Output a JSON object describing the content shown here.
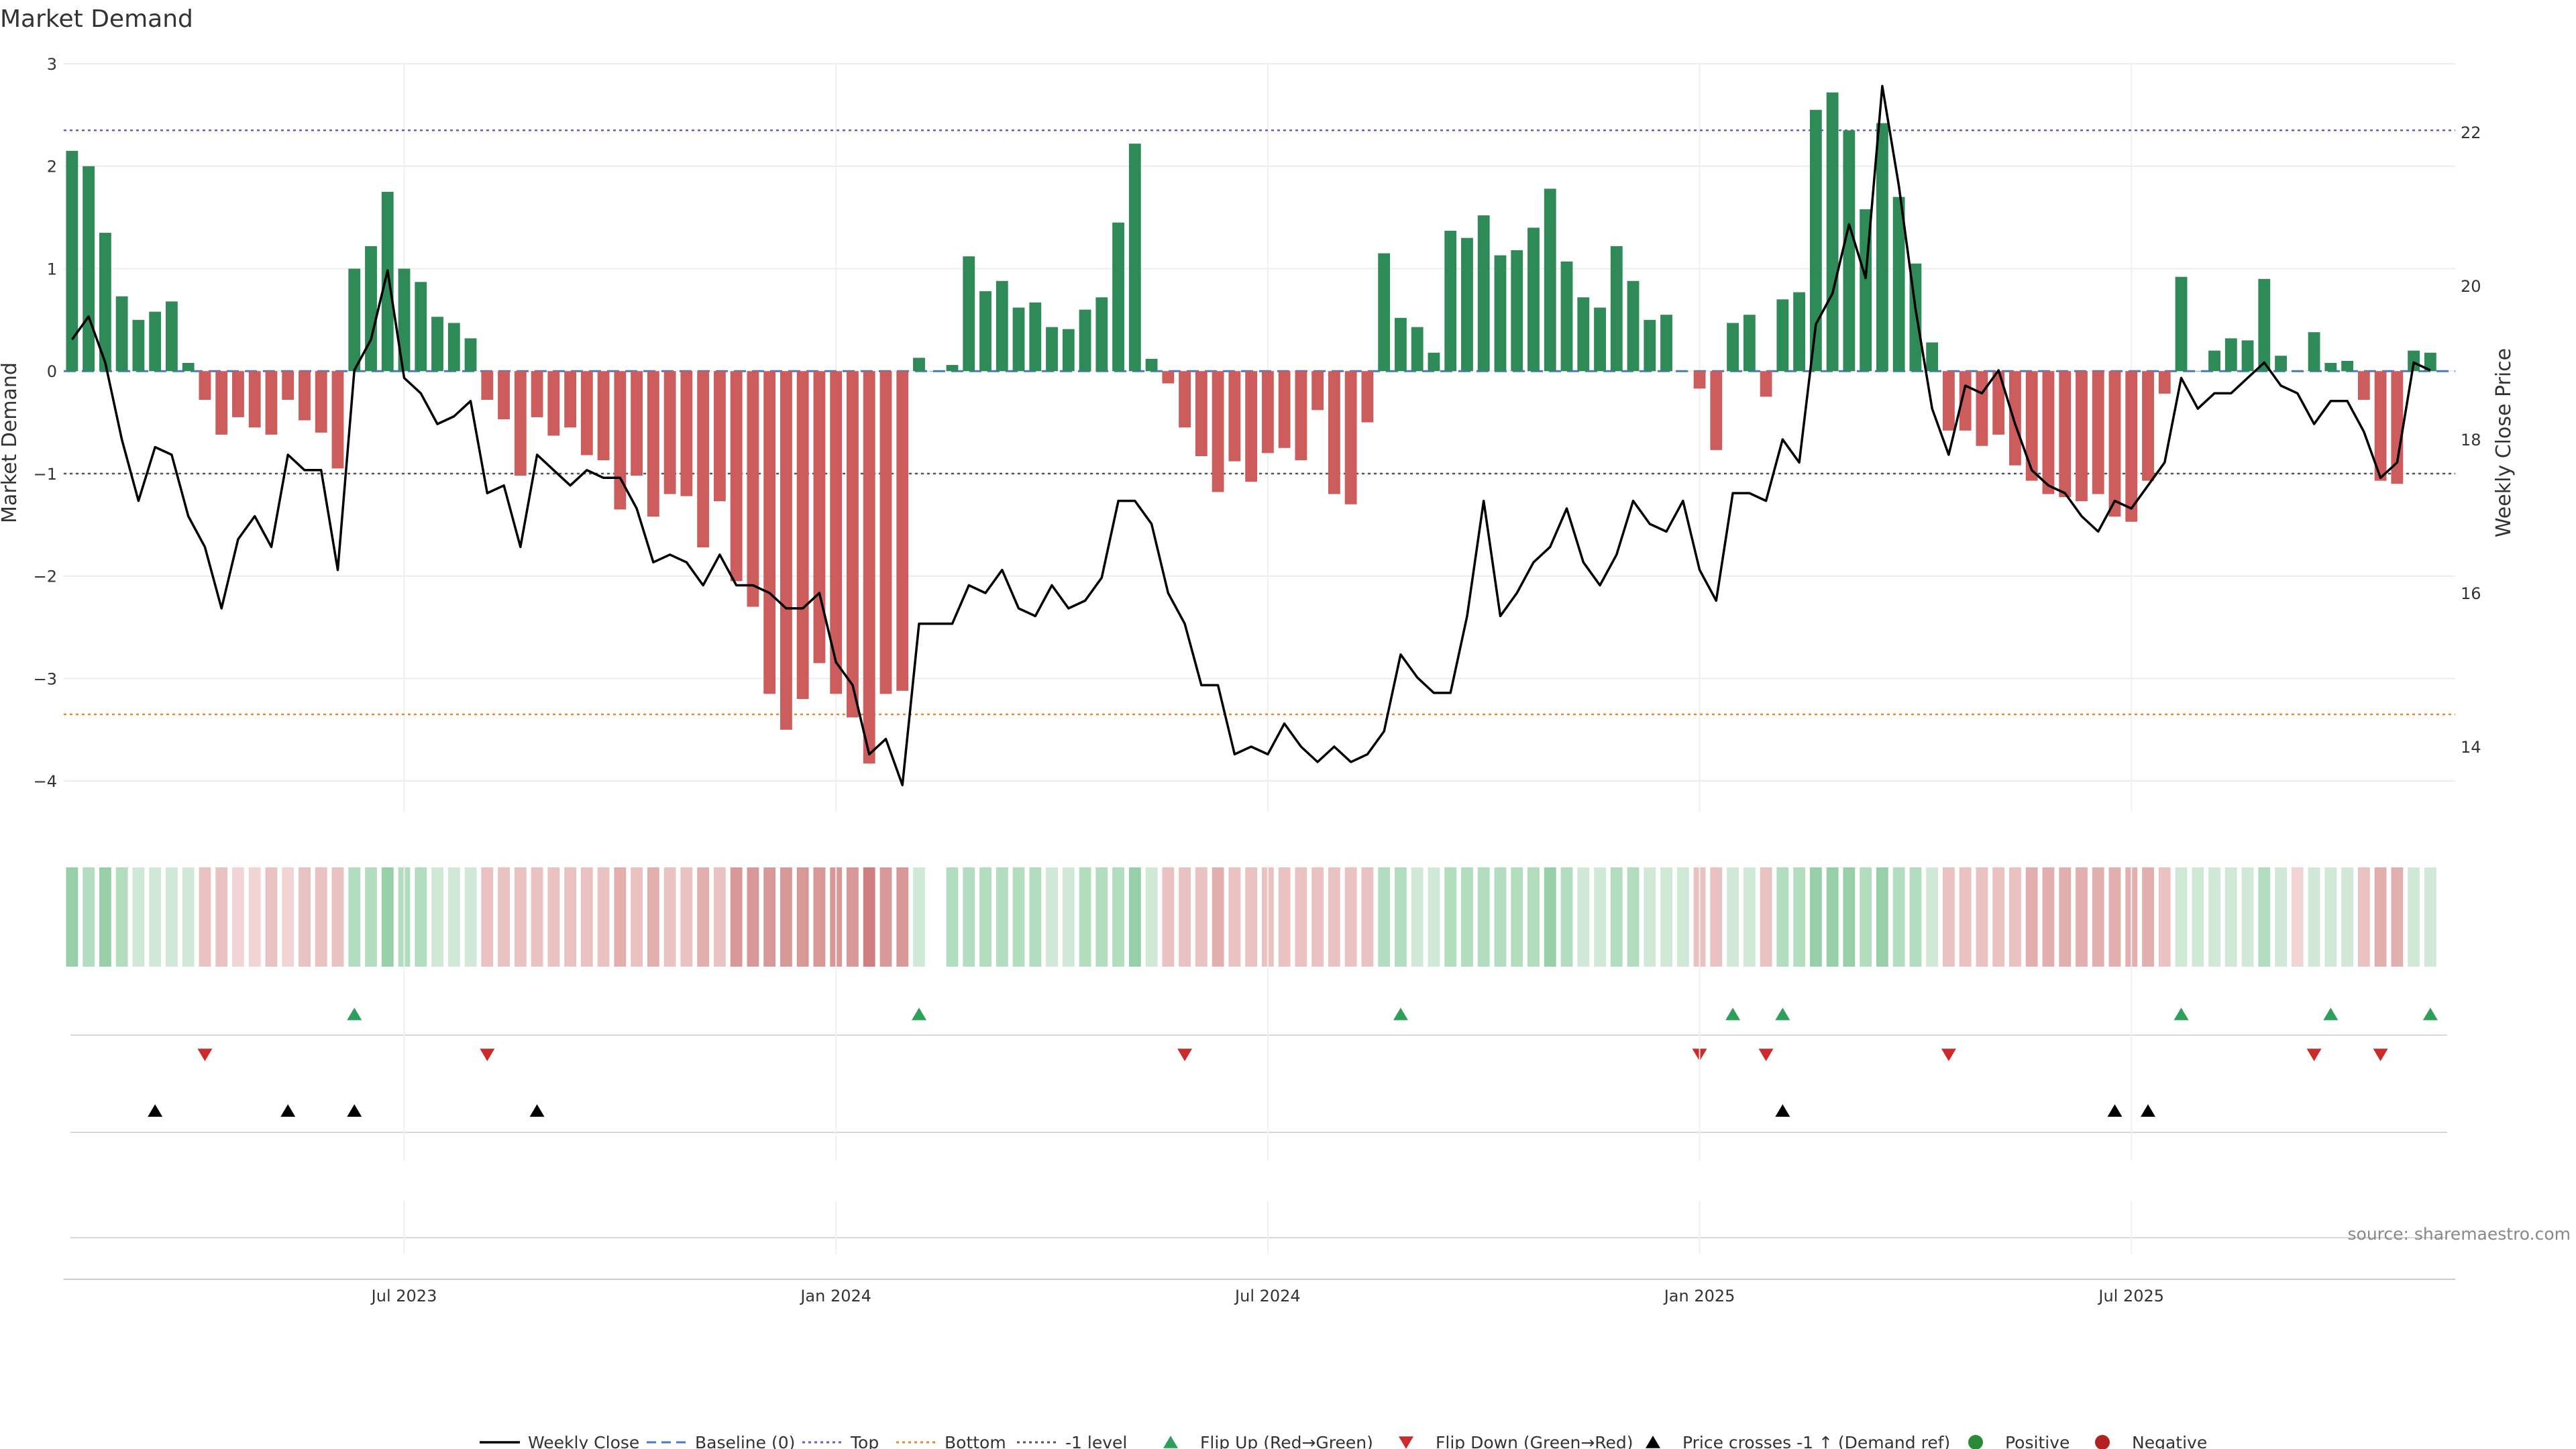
{
  "chart_data": {
    "type": "bar+line",
    "title": "Market Demand",
    "ylabel": "Market Demand",
    "y2label": "Weekly Close Price",
    "ylim": [
      -4.3,
      3.0
    ],
    "y2lim": [
      13.0,
      23.2
    ],
    "y_ticks": [
      3,
      2,
      1,
      0,
      -1,
      -2,
      -3,
      -4
    ],
    "y_tick_labels": [
      "3",
      "2",
      "1",
      "0",
      "−1",
      "−2",
      "−3",
      "−4"
    ],
    "y2_ticks": [
      22,
      20,
      18,
      16,
      14
    ],
    "y2_tick_labels": [
      "22",
      "20",
      "18",
      "16",
      "14"
    ],
    "x_ticks": [
      {
        "label": "Jul 2023",
        "week": 20
      },
      {
        "label": "Jan 2024",
        "week": 46
      },
      {
        "label": "Jul 2024",
        "week": 72
      },
      {
        "label": "Jan 2025",
        "week": 98
      },
      {
        "label": "Jul 2025",
        "week": 124
      }
    ],
    "week_count": 144,
    "reference_lines": [
      {
        "name": "Top",
        "value": 2.35,
        "color": "#6a5acd"
      },
      {
        "name": "Bottom",
        "value": -3.35,
        "color": "#e08a2e"
      },
      {
        "name": "-1 level",
        "value": -1.0,
        "color": "#555555"
      },
      {
        "name": "Baseline (0)",
        "value": 0,
        "color": "#4a78c2"
      }
    ],
    "demand": [
      2.15,
      2.0,
      1.35,
      0.73,
      0.5,
      0.58,
      0.68,
      0.08,
      -0.28,
      -0.62,
      -0.45,
      -0.55,
      -0.62,
      -0.28,
      -0.48,
      -0.6,
      -0.95,
      1.0,
      1.22,
      1.75,
      1.0,
      0.87,
      0.53,
      0.47,
      0.32,
      -0.28,
      -0.47,
      -1.02,
      -0.45,
      -0.63,
      -0.55,
      -0.82,
      -0.87,
      -1.35,
      -1.02,
      -1.42,
      -1.2,
      -1.22,
      -1.72,
      -1.27,
      -2.05,
      -2.3,
      -3.15,
      -3.5,
      -3.2,
      -2.85,
      -3.15,
      -3.38,
      -3.83,
      -3.15,
      -3.12,
      0.13,
      0.0,
      0.06,
      1.12,
      0.78,
      0.88,
      0.62,
      0.67,
      0.43,
      0.41,
      0.6,
      0.72,
      1.45,
      2.22,
      0.12,
      -0.12,
      -0.55,
      -0.83,
      -1.18,
      -0.88,
      -1.08,
      -0.8,
      -0.75,
      -0.87,
      -0.38,
      -1.2,
      -1.3,
      -0.5,
      1.15,
      0.52,
      0.43,
      0.18,
      1.37,
      1.3,
      1.52,
      1.13,
      1.18,
      1.4,
      1.78,
      1.07,
      0.72,
      0.62,
      1.22,
      0.88,
      0.5,
      0.55,
      0.0,
      -0.17,
      -0.77,
      0.47,
      0.55,
      -0.25,
      0.7,
      0.77,
      2.55,
      2.72,
      2.35,
      1.58,
      2.42,
      1.7,
      1.05,
      0.28,
      -0.58,
      -0.58,
      -0.73,
      -0.62,
      -0.92,
      -1.07,
      -1.2,
      -1.23,
      -1.27,
      -1.2,
      -1.42,
      -1.47,
      -1.07,
      -0.22,
      0.92,
      0.0,
      0.2,
      0.32,
      0.3,
      0.9,
      0.15,
      0.0,
      0.38,
      0.08,
      0.1,
      -0.28,
      -1.07,
      -1.1,
      0.2,
      0.18
    ],
    "close": [
      19.3,
      19.6,
      19.0,
      18.0,
      17.2,
      17.9,
      17.8,
      17.0,
      16.6,
      15.8,
      16.7,
      17.0,
      16.6,
      17.8,
      17.6,
      17.6,
      16.3,
      18.9,
      19.3,
      20.2,
      18.8,
      18.6,
      18.2,
      18.3,
      18.5,
      17.3,
      17.4,
      16.6,
      17.8,
      17.6,
      17.4,
      17.6,
      17.5,
      17.5,
      17.1,
      16.4,
      16.5,
      16.4,
      16.1,
      16.5,
      16.1,
      16.1,
      16.0,
      15.8,
      15.8,
      16.0,
      15.1,
      14.8,
      13.9,
      14.1,
      13.5,
      15.6,
      15.6,
      15.6,
      16.1,
      16.0,
      16.3,
      15.8,
      15.7,
      16.1,
      15.8,
      15.9,
      16.2,
      17.2,
      17.2,
      16.9,
      16.0,
      15.6,
      14.8,
      14.8,
      13.9,
      14.0,
      13.9,
      14.3,
      14.0,
      13.8,
      14.0,
      13.8,
      13.9,
      14.2,
      15.2,
      14.9,
      14.7,
      14.7,
      15.7,
      17.2,
      15.7,
      16.0,
      16.4,
      16.6,
      17.1,
      16.4,
      16.1,
      16.5,
      17.2,
      16.9,
      16.8,
      17.2,
      16.3,
      15.9,
      17.3,
      17.3,
      17.2,
      18.0,
      17.7,
      19.5,
      19.9,
      20.8,
      20.1,
      22.6,
      21.3,
      19.7,
      18.4,
      17.8,
      18.7,
      18.6,
      18.9,
      18.2,
      17.6,
      17.4,
      17.3,
      17.0,
      16.8,
      17.2,
      17.1,
      17.4,
      17.7,
      18.8,
      18.4,
      18.6,
      18.6,
      18.8,
      19.0,
      18.7,
      18.6,
      18.2,
      18.5,
      18.5,
      18.1,
      17.5,
      17.7,
      19.0,
      18.9
    ],
    "tone_band": [
      3,
      2,
      3,
      2,
      1,
      1,
      1,
      1,
      -2,
      -2,
      -1,
      -1,
      -2,
      -1,
      -2,
      -2,
      -2,
      2,
      2,
      3,
      2,
      2,
      1,
      1,
      1,
      -2,
      -2,
      -2,
      -2,
      -2,
      -2,
      -2,
      -2,
      -3,
      -2,
      -3,
      -2,
      -2,
      -3,
      -2,
      -4,
      -4,
      -4,
      -4,
      -4,
      -4,
      -4,
      -4,
      -5,
      -4,
      -4,
      1,
      null,
      2,
      2,
      2,
      2,
      2,
      2,
      1,
      1,
      2,
      2,
      2,
      3,
      1,
      -2,
      -2,
      -2,
      -3,
      -2,
      -2,
      -2,
      -2,
      -2,
      -2,
      -2,
      -2,
      -2,
      2,
      2,
      1,
      1,
      2,
      2,
      2,
      2,
      2,
      2,
      3,
      2,
      1,
      1,
      2,
      2,
      1,
      1,
      1,
      -2,
      -2,
      1,
      1,
      -2,
      2,
      2,
      3,
      3,
      3,
      2,
      3,
      2,
      2,
      1,
      -2,
      -2,
      -2,
      -2,
      -2,
      -3,
      -3,
      -3,
      -3,
      -3,
      -3,
      -3,
      -3,
      -2,
      1,
      1,
      1,
      1,
      1,
      2,
      1,
      -1,
      1,
      1,
      1,
      -2,
      -3,
      -3,
      1,
      1
    ],
    "flip_up_weeks": [
      17,
      51,
      80,
      100,
      103,
      127,
      136,
      142
    ],
    "flip_down_weeks": [
      8,
      25,
      67,
      98,
      102,
      113,
      135,
      139
    ],
    "price_cross_weeks": [
      5,
      13,
      17,
      28,
      103,
      123,
      125
    ],
    "legend": [
      {
        "label": "Weekly Close",
        "symbol": "line",
        "color": "#000000"
      },
      {
        "label": "Baseline (0)",
        "symbol": "dash",
        "color": "#4a78c2"
      },
      {
        "label": "Top",
        "symbol": "dot",
        "color": "#6a5acd"
      },
      {
        "label": "Bottom",
        "symbol": "dot",
        "color": "#e08a2e"
      },
      {
        "label": "-1 level",
        "symbol": "dot",
        "color": "#555555"
      },
      {
        "label": "Flip Up (Red→Green)",
        "symbol": "tri-up",
        "color": "#2e9e5b"
      },
      {
        "label": "Flip Down (Green→Red)",
        "symbol": "tri-down",
        "color": "#cc2b2b"
      },
      {
        "label": "Price crosses -1 ↑ (Demand ref)",
        "symbol": "tri-up",
        "color": "#000000"
      },
      {
        "label": "Positive",
        "symbol": "circle",
        "color": "#2a8a3a"
      },
      {
        "label": "Negative",
        "symbol": "circle",
        "color": "#b22222"
      }
    ],
    "source": "source: sharemaestro.com",
    "colors": {
      "positive_bar": "#2e8b57",
      "negative_bar": "#cd5c5c",
      "close_line": "#000000"
    }
  }
}
